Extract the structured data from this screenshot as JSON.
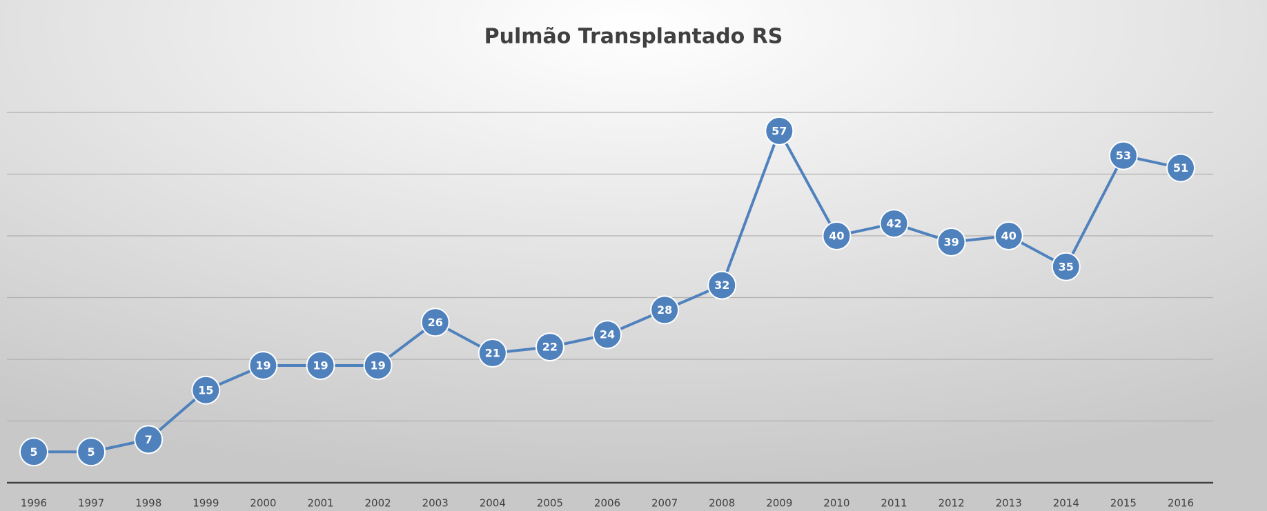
{
  "chart_data": {
    "type": "line",
    "title": "Pulmão Transplantado RS",
    "categories": [
      "1996",
      "1997",
      "1998",
      "1999",
      "2000",
      "2001",
      "2002",
      "2003",
      "2004",
      "2005",
      "2006",
      "2007",
      "2008",
      "2009",
      "2010",
      "2011",
      "2012",
      "2013",
      "2014",
      "2015",
      "2016"
    ],
    "series": [
      {
        "name": "Pulmão Transplantado RS",
        "color": "#4f81bd",
        "values": [
          5,
          5,
          7,
          15,
          19,
          19,
          19,
          26,
          21,
          22,
          24,
          28,
          32,
          57,
          40,
          42,
          39,
          40,
          35,
          53,
          51
        ]
      }
    ],
    "ylim": [
      0,
      60
    ],
    "yticks": [
      0,
      10,
      20,
      30,
      40,
      50,
      60
    ],
    "grid": true
  }
}
